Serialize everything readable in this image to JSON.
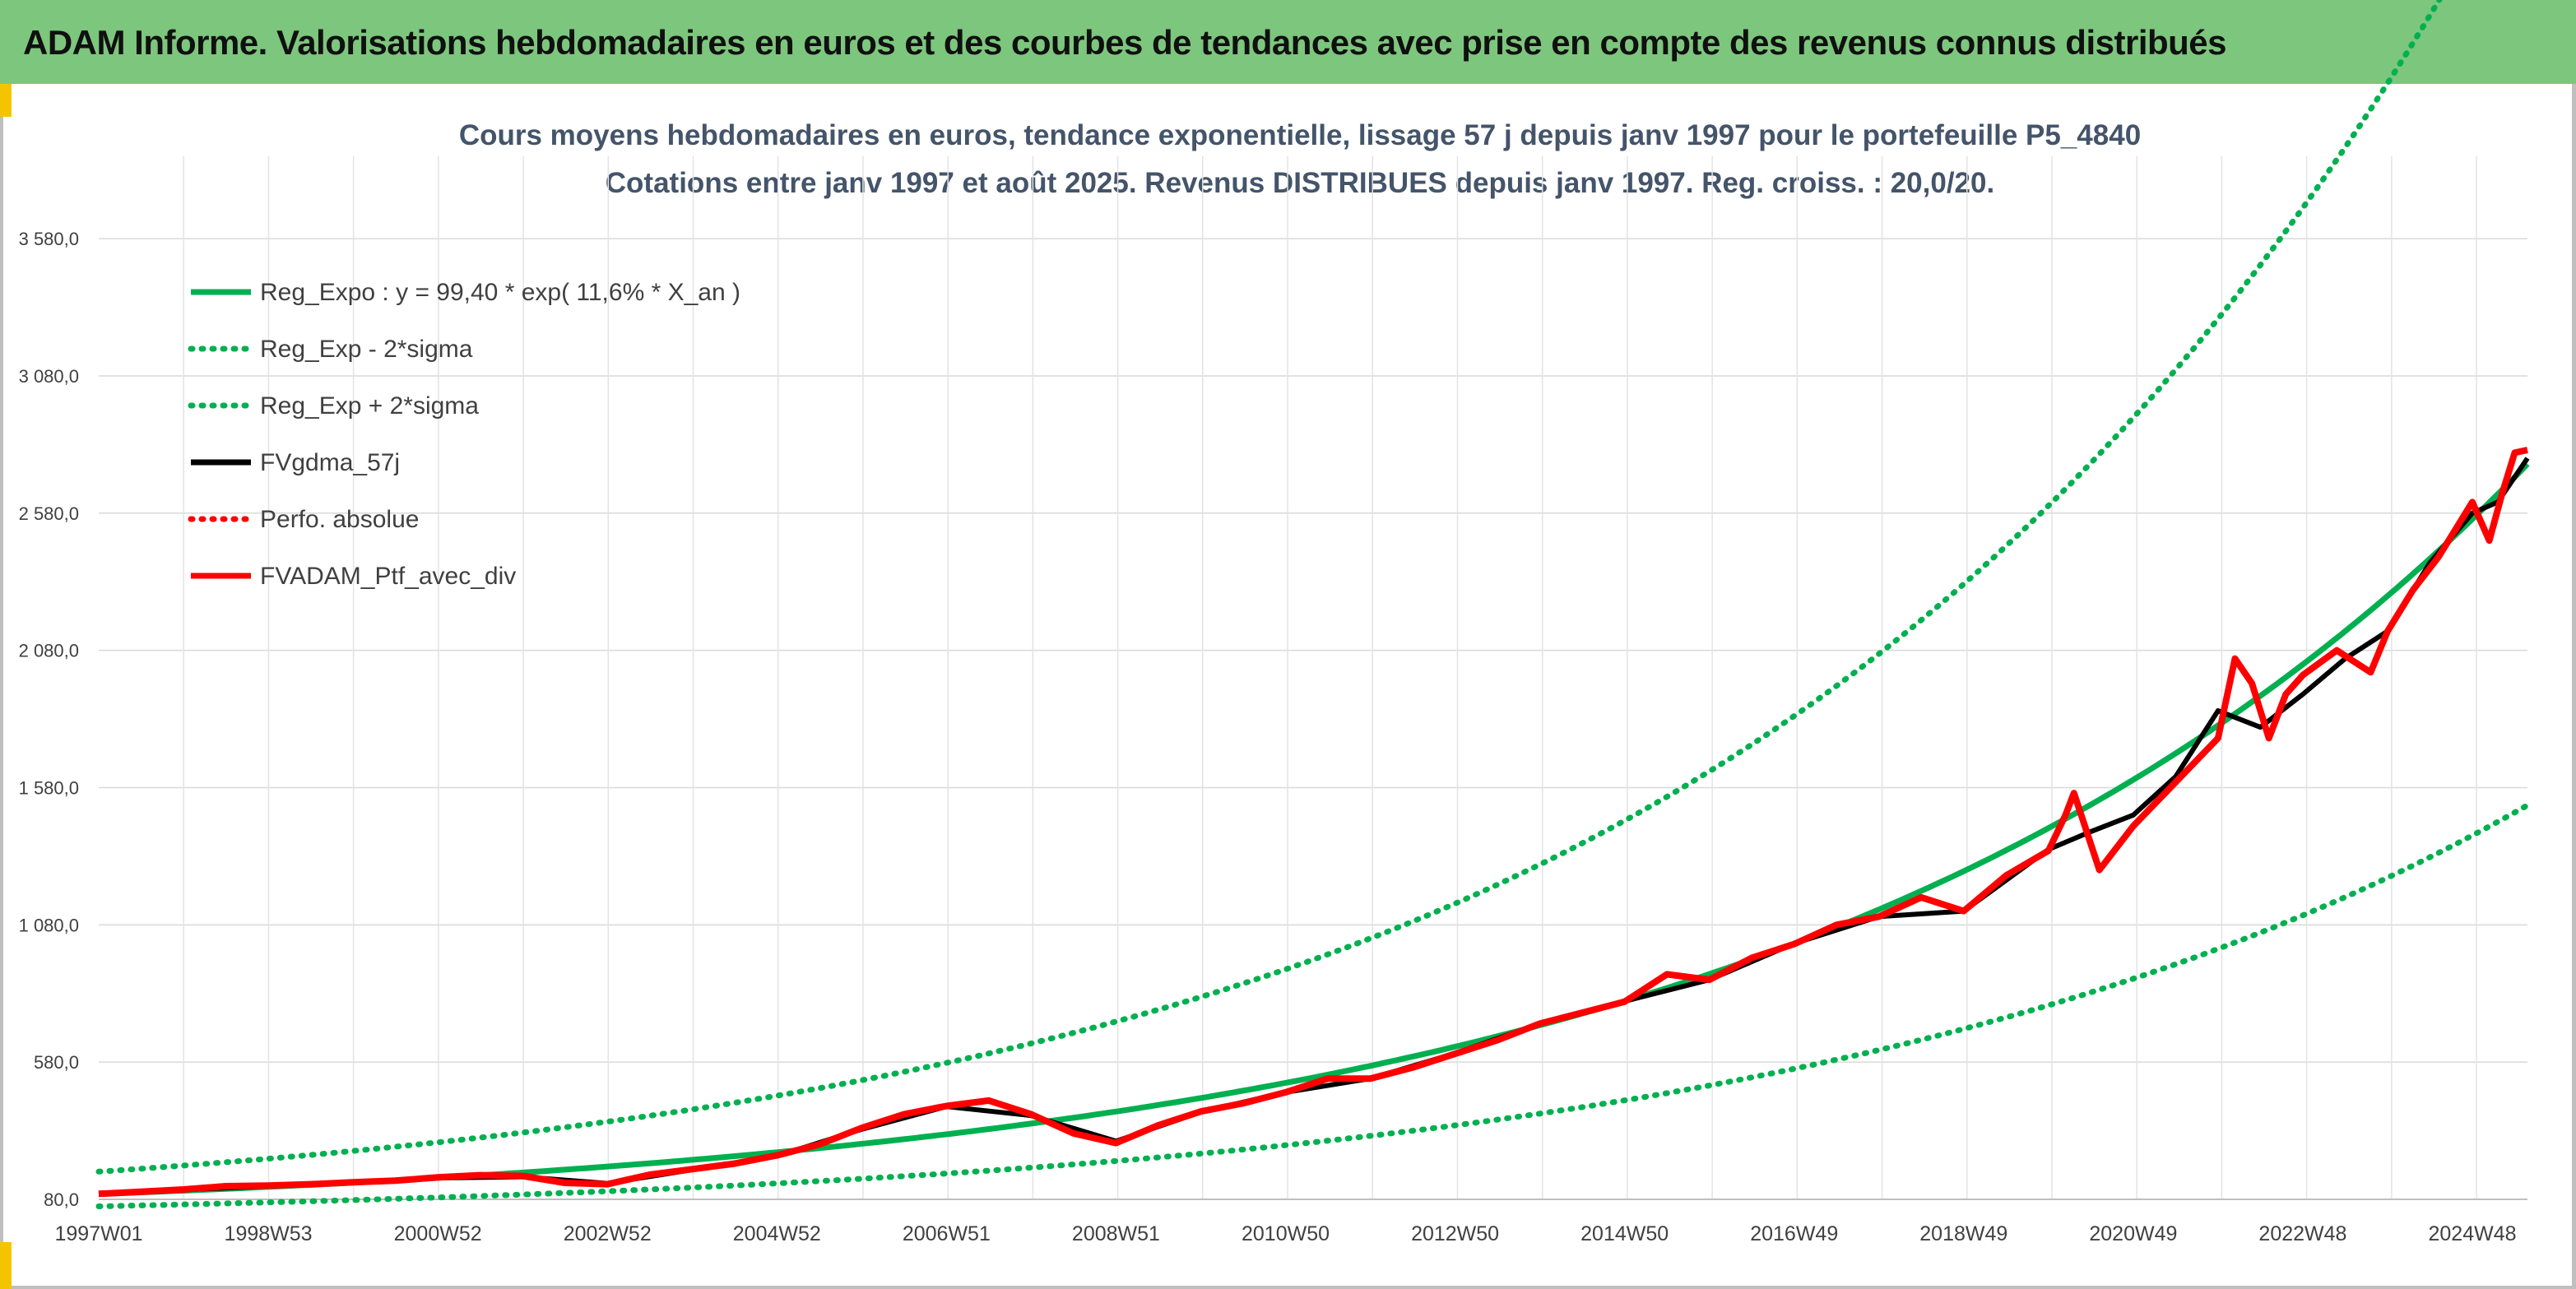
{
  "banner": {
    "title": "ADAM Informe. Valorisations hebdomadaires en euros et des courbes de tendances avec prise en compte des revenus connus distribués"
  },
  "colors": {
    "banner_bg": "#7dc67d",
    "accent": "#f5c400",
    "regression": "#00b050",
    "gdma": "#000000",
    "portfolio": "#ff0000"
  },
  "chart_data": {
    "type": "line",
    "title": "Cours moyens hebdomadaires en euros, tendance exponentielle, lissage 57 j depuis janv 1997 pour le portefeuille P5_4840",
    "subtitle": "Cotations entre janv 1997 et août 2025. Revenus DISTRIBUES depuis janv 1997. Reg. croiss. : 20,0/20.",
    "xlabel": "",
    "ylabel": "",
    "x_range": [
      1997.0,
      2025.65
    ],
    "ylim": [
      80,
      3880
    ],
    "y_ticks": [
      "80,0",
      "580,0",
      "1 080,0",
      "1 580,0",
      "2 080,0",
      "2 580,0",
      "3 080,0",
      "3 580,0"
    ],
    "y_tick_values": [
      80,
      580,
      1080,
      1580,
      2080,
      2580,
      3080,
      3580
    ],
    "x_ticks": [
      "1997W01",
      "1998W53",
      "2000W52",
      "2002W52",
      "2004W52",
      "2006W51",
      "2008W51",
      "2010W50",
      "2012W50",
      "2014W50",
      "2016W49",
      "2018W49",
      "2020W49",
      "2022W48",
      "2024W48"
    ],
    "x_tick_values": [
      1997.0,
      1999.0,
      2001.0,
      2003.0,
      2005.0,
      2007.0,
      2009.0,
      2011.0,
      2013.0,
      2015.0,
      2017.0,
      2019.0,
      2021.0,
      2023.0,
      2025.0
    ],
    "grid": true,
    "legend_position": "top-left",
    "legend": [
      {
        "label": "Reg_Expo : y = 99,40 * exp( 11,6% *  X_an )",
        "color": "#00b050",
        "style": "solid"
      },
      {
        "label": "Reg_Exp - 2*sigma",
        "color": "#00b050",
        "style": "dotted"
      },
      {
        "label": "Reg_Exp + 2*sigma",
        "color": "#00b050",
        "style": "dotted"
      },
      {
        "label": "FVgdma_57j",
        "color": "#000000",
        "style": "solid"
      },
      {
        "label": "Perfo. absolue",
        "color": "#ff0000",
        "style": "dotted"
      },
      {
        "label": "FVADAM_Ptf_avec_div",
        "color": "#ff0000",
        "style": "solid"
      }
    ],
    "regression": {
      "a": 99.4,
      "b": 0.116
    },
    "band_factor": 0.82,
    "series": [
      {
        "name": "FVADAM_Ptf_avec_div",
        "x": [
          1997.0,
          1997.5,
          1998.0,
          1998.5,
          1999.0,
          1999.5,
          2000.0,
          2000.5,
          2001.0,
          2001.5,
          2002.0,
          2002.5,
          2003.0,
          2003.5,
          2004.0,
          2004.5,
          2005.0,
          2005.5,
          2006.0,
          2006.5,
          2007.0,
          2007.5,
          2008.0,
          2008.5,
          2009.0,
          2009.5,
          2010.0,
          2010.5,
          2011.0,
          2011.5,
          2012.0,
          2012.5,
          2013.0,
          2013.5,
          2014.0,
          2014.5,
          2015.0,
          2015.5,
          2016.0,
          2016.5,
          2017.0,
          2017.5,
          2018.0,
          2018.5,
          2019.0,
          2019.5,
          2020.0,
          2020.2,
          2020.3,
          2020.6,
          2021.0,
          2021.5,
          2022.0,
          2022.2,
          2022.4,
          2022.6,
          2022.8,
          2023.0,
          2023.4,
          2023.8,
          2024.0,
          2024.3,
          2024.6,
          2025.0,
          2025.2,
          2025.35,
          2025.5,
          2025.65
        ],
        "y": [
          100,
          108,
          116,
          128,
          130,
          135,
          142,
          148,
          160,
          168,
          165,
          140,
          135,
          170,
          190,
          210,
          240,
          280,
          340,
          390,
          420,
          440,
          390,
          320,
          285,
          350,
          400,
          430,
          470,
          520,
          520,
          560,
          610,
          660,
          720,
          760,
          800,
          900,
          880,
          960,
          1010,
          1080,
          1110,
          1180,
          1130,
          1260,
          1350,
          1480,
          1560,
          1280,
          1440,
          1600,
          1760,
          2050,
          1960,
          1760,
          1920,
          1990,
          2080,
          2000,
          2150,
          2300,
          2420,
          2620,
          2480,
          2650,
          2800,
          2810
        ]
      },
      {
        "name": "FVgdma_57j",
        "x": [
          1997.0,
          1998.0,
          1999.0,
          2000.0,
          2001.0,
          2002.0,
          2003.0,
          2004.0,
          2005.0,
          2006.0,
          2007.0,
          2008.0,
          2009.0,
          2010.0,
          2011.0,
          2012.0,
          2013.0,
          2014.0,
          2015.0,
          2016.0,
          2017.0,
          2018.0,
          2019.0,
          2020.0,
          2020.5,
          2021.0,
          2021.5,
          2022.0,
          2022.5,
          2023.0,
          2023.5,
          2024.0,
          2024.5,
          2025.0,
          2025.3,
          2025.65
        ],
        "y": [
          100,
          115,
          128,
          140,
          158,
          162,
          138,
          188,
          238,
          335,
          418,
          385,
          292,
          398,
          470,
          520,
          612,
          720,
          802,
          880,
          1012,
          1110,
          1130,
          1355,
          1420,
          1480,
          1620,
          1860,
          1800,
          1920,
          2050,
          2150,
          2400,
          2580,
          2620,
          2780
        ]
      }
    ]
  }
}
